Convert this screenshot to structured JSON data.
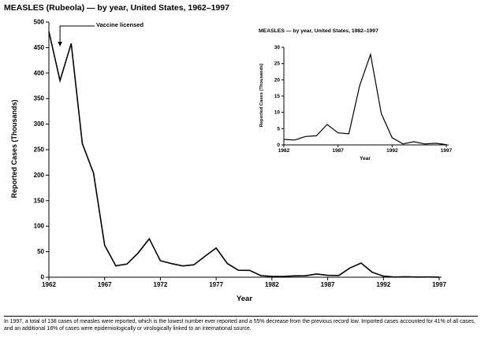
{
  "page": {
    "title": "MEASLES (Rubeola) — by year, United States, 1962–1997"
  },
  "footnote": "In 1997, a total of 138 cases of measles were reported, which is the lowest number ever reported and a 55% decrease from the previous record low. Imported cases accounted for 41% of all cases, and an additional 18% of cases were epidemiologically or virologically linked to an international source.",
  "colors": {
    "line": "#000000",
    "background": "#ffffff"
  },
  "chart_data": [
    {
      "type": "line",
      "title": "MEASLES (Rubeola) — by year, United States, 1962–1997",
      "xlabel": "Year",
      "ylabel": "Reported Cases (Thousands)",
      "xlim": [
        1962,
        1997
      ],
      "ylim": [
        0,
        500
      ],
      "grid": false,
      "legend": "none",
      "xticks": [
        1962,
        1967,
        1972,
        1977,
        1982,
        1987,
        1992,
        1997
      ],
      "yticks": [
        0,
        50,
        100,
        150,
        200,
        250,
        300,
        350,
        400,
        450,
        500
      ],
      "x": [
        1962,
        1963,
        1964,
        1965,
        1966,
        1967,
        1968,
        1969,
        1970,
        1971,
        1972,
        1973,
        1974,
        1975,
        1976,
        1977,
        1978,
        1979,
        1980,
        1981,
        1982,
        1983,
        1984,
        1985,
        1986,
        1987,
        1988,
        1989,
        1990,
        1991,
        1992,
        1993,
        1994,
        1995,
        1996,
        1997
      ],
      "values": [
        481.5,
        385.2,
        458.1,
        261.9,
        204.1,
        62.7,
        22.2,
        25.8,
        47.4,
        75.3,
        32.3,
        26.7,
        22.1,
        24.4,
        41.1,
        57.3,
        26.9,
        13.6,
        13.5,
        3.1,
        1.7,
        1.5,
        2.6,
        2.8,
        6.3,
        3.7,
        3.4,
        18.2,
        27.8,
        9.6,
        2.2,
        0.3,
        1.0,
        0.3,
        0.5,
        0.1
      ],
      "annotations": [
        {
          "text": "Vaccine licensed",
          "x": 1963,
          "y": 452
        }
      ]
    },
    {
      "type": "line",
      "title": "MEASLES — by year, United States, 1982–1997",
      "xlabel": "Year",
      "ylabel": "Reported Cases (Thousands)",
      "xlim": [
        1982,
        1997
      ],
      "ylim": [
        0,
        30
      ],
      "grid": false,
      "legend": "none",
      "xticks": [
        1982,
        1987,
        1992,
        1997
      ],
      "yticks": [
        0,
        5,
        10,
        15,
        20,
        25,
        30
      ],
      "x": [
        1982,
        1983,
        1984,
        1985,
        1986,
        1987,
        1988,
        1989,
        1990,
        1991,
        1992,
        1993,
        1994,
        1995,
        1996,
        1997
      ],
      "values": [
        1.7,
        1.5,
        2.6,
        2.8,
        6.3,
        3.7,
        3.4,
        18.2,
        27.8,
        9.6,
        2.2,
        0.3,
        1.0,
        0.3,
        0.5,
        0.1
      ]
    }
  ]
}
